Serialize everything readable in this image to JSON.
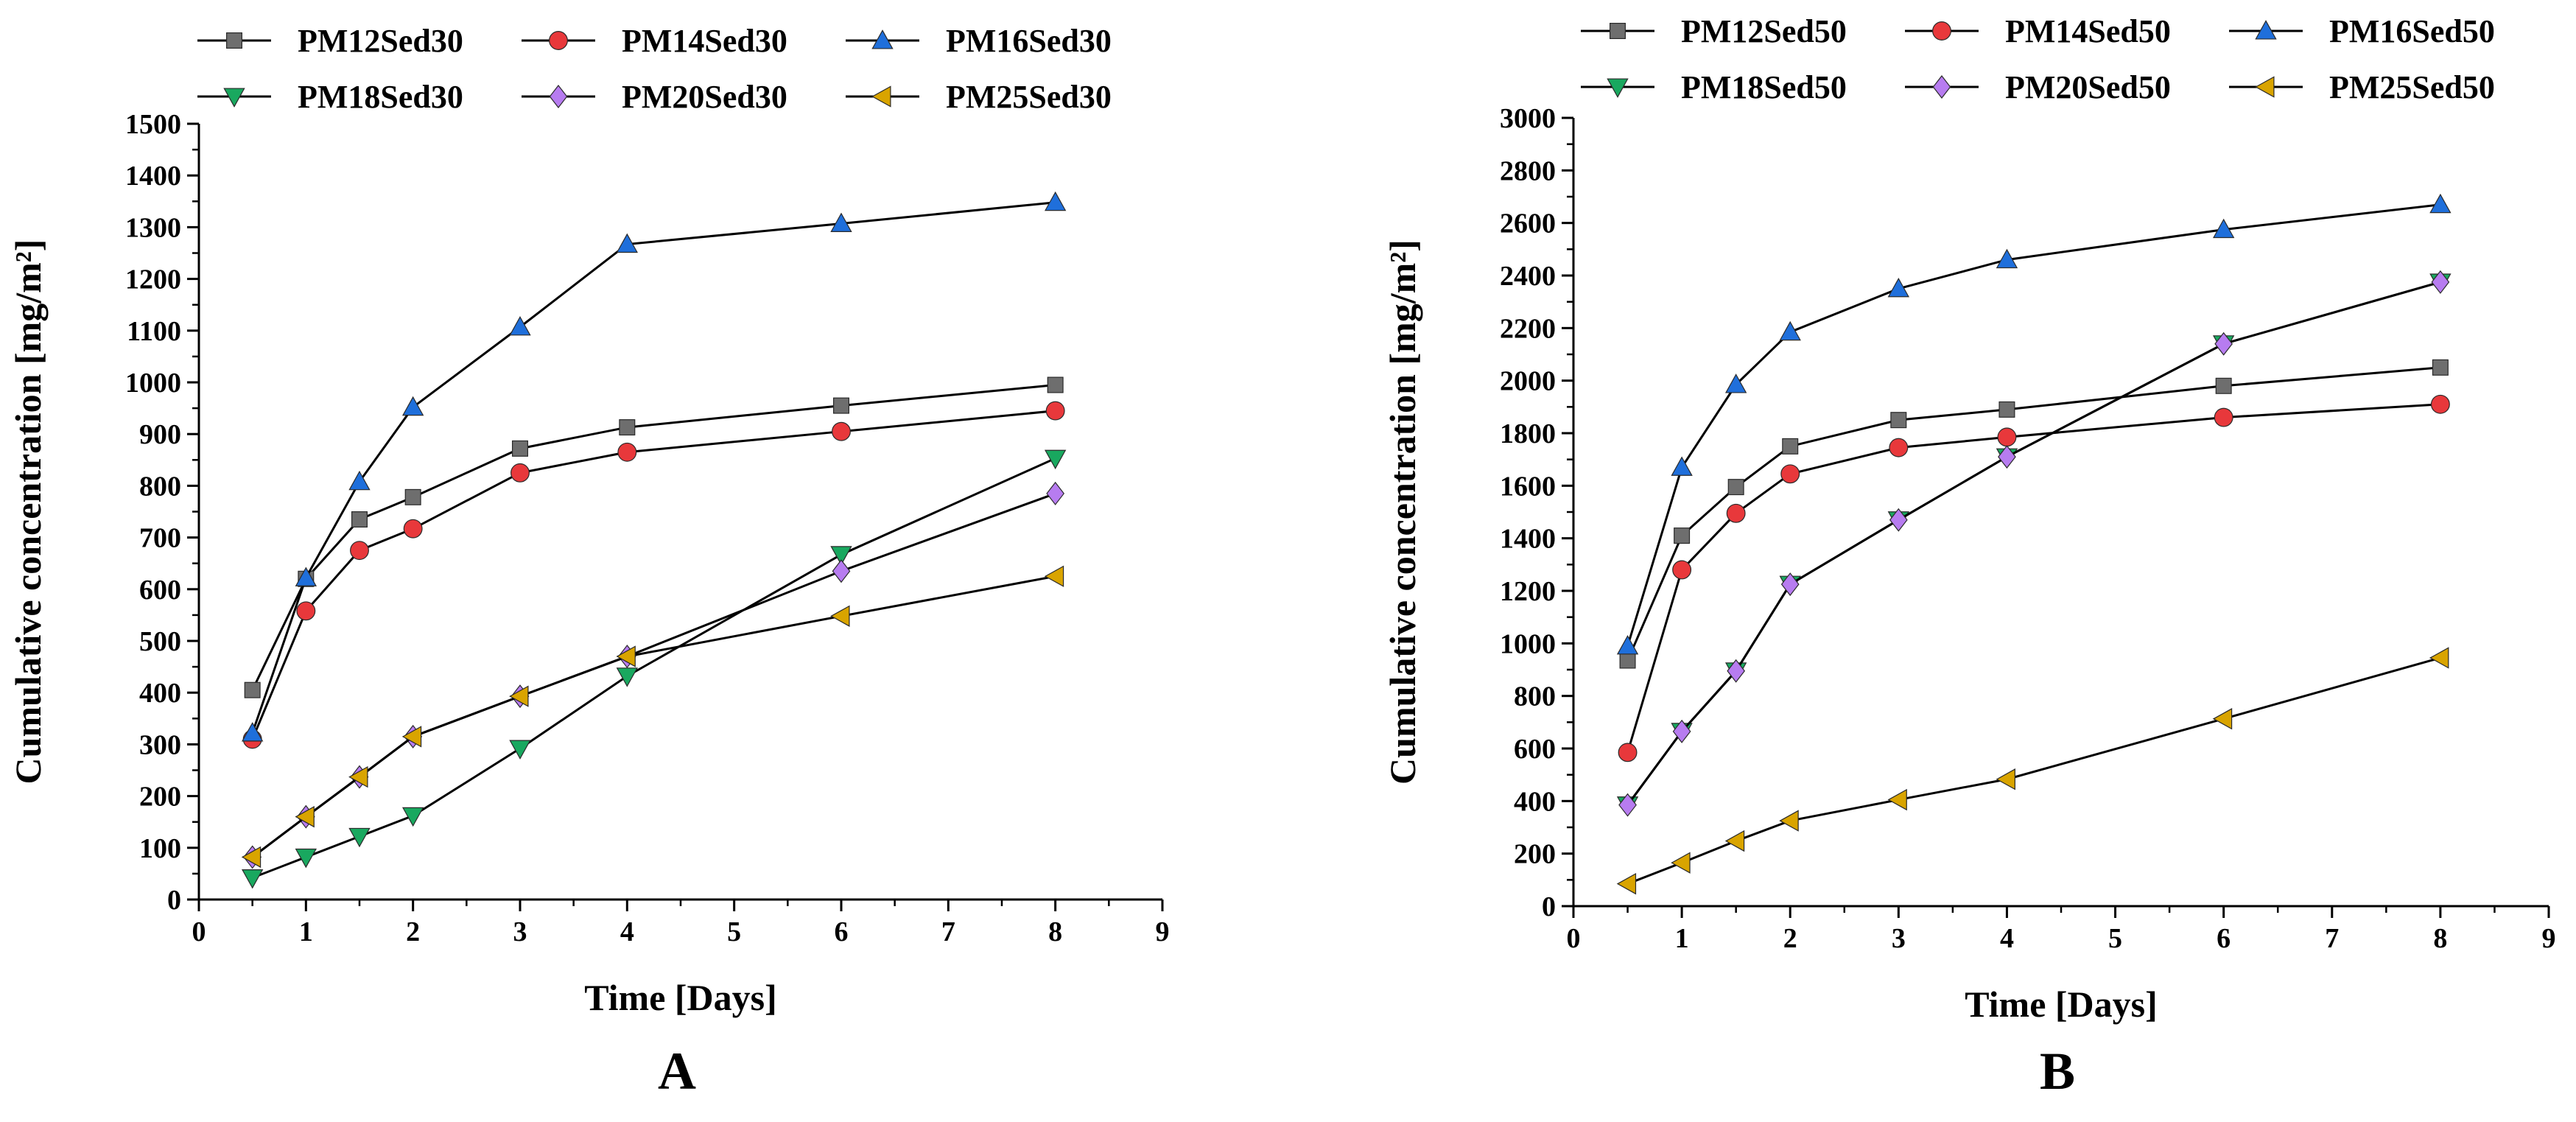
{
  "chart_data": [
    {
      "type": "line",
      "panel_label": "A",
      "xlabel": "Time [Days]",
      "ylabel": "Cumulative concentration [mg/m²]",
      "xlim": [
        0,
        9
      ],
      "ylim": [
        0,
        1500
      ],
      "xticks": [
        0,
        1,
        2,
        3,
        4,
        5,
        6,
        7,
        8,
        9
      ],
      "yticks": [
        0,
        100,
        200,
        300,
        400,
        500,
        600,
        700,
        800,
        900,
        1000,
        1100,
        1200,
        1300,
        1400,
        1500
      ],
      "grid": false,
      "legend_position": "top, above plot, 3 columns",
      "x": [
        0.5,
        1,
        1.5,
        2,
        3,
        4,
        6,
        8
      ],
      "series": [
        {
          "name": "PM12Sed30",
          "color": "#6e6e6e",
          "marker": "square",
          "values": [
            405,
            620,
            735,
            778,
            872,
            913,
            955,
            995
          ]
        },
        {
          "name": "PM14Sed30",
          "color": "#e8383b",
          "marker": "circle",
          "values": [
            310,
            558,
            675,
            717,
            825,
            865,
            905,
            945
          ]
        },
        {
          "name": "PM16Sed30",
          "color": "#1f6fdb",
          "marker": "triangle-up",
          "values": [
            322,
            622,
            808,
            952,
            1107,
            1267,
            1307,
            1348
          ]
        },
        {
          "name": "PM18Sed30",
          "color": "#19a85f",
          "marker": "triangle-down",
          "values": [
            42,
            82,
            122,
            162,
            292,
            432,
            667,
            853
          ]
        },
        {
          "name": "PM20Sed30",
          "color": "#b77cf0",
          "marker": "diamond",
          "values": [
            82,
            160,
            237,
            315,
            393,
            470,
            635,
            785
          ]
        },
        {
          "name": "PM25Sed30",
          "color": "#d9a400",
          "marker": "triangle-left",
          "values": [
            82,
            160,
            237,
            315,
            393,
            470,
            548,
            625
          ]
        }
      ]
    },
    {
      "type": "line",
      "panel_label": "B",
      "xlabel": "Time [Days]",
      "ylabel": "Cumulative concentration [mg/m²]",
      "xlim": [
        0,
        9
      ],
      "ylim": [
        0,
        3000
      ],
      "xticks": [
        0,
        1,
        2,
        3,
        4,
        5,
        6,
        7,
        8,
        9
      ],
      "yticks": [
        0,
        200,
        400,
        600,
        800,
        1000,
        1200,
        1400,
        1600,
        1800,
        2000,
        2200,
        2400,
        2600,
        2800,
        3000
      ],
      "grid": false,
      "legend_position": "top, above plot, 3 columns",
      "x": [
        0.5,
        1,
        1.5,
        2,
        3,
        4,
        6,
        8
      ],
      "series": [
        {
          "name": "PM12Sed50",
          "color": "#6e6e6e",
          "marker": "square",
          "values": [
            935,
            1410,
            1595,
            1750,
            1850,
            1890,
            1980,
            2050
          ]
        },
        {
          "name": "PM14Sed50",
          "color": "#e8383b",
          "marker": "circle",
          "values": [
            585,
            1280,
            1495,
            1645,
            1745,
            1785,
            1860,
            1910
          ]
        },
        {
          "name": "PM16Sed50",
          "color": "#1f6fdb",
          "marker": "triangle-up",
          "values": [
            990,
            1670,
            1985,
            2185,
            2350,
            2460,
            2575,
            2670
          ]
        },
        {
          "name": "PM18Sed50",
          "color": "#19a85f",
          "marker": "triangle-down",
          "values": [
            385,
            665,
            895,
            1225,
            1470,
            1710,
            2140,
            2375
          ]
        },
        {
          "name": "PM20Sed50",
          "color": "#b77cf0",
          "marker": "diamond",
          "values": [
            385,
            665,
            895,
            1225,
            1470,
            1710,
            2140,
            2375
          ]
        },
        {
          "name": "PM25Sed50",
          "color": "#d9a400",
          "marker": "triangle-left",
          "values": [
            85,
            165,
            248,
            325,
            405,
            483,
            713,
            945
          ]
        }
      ]
    }
  ]
}
